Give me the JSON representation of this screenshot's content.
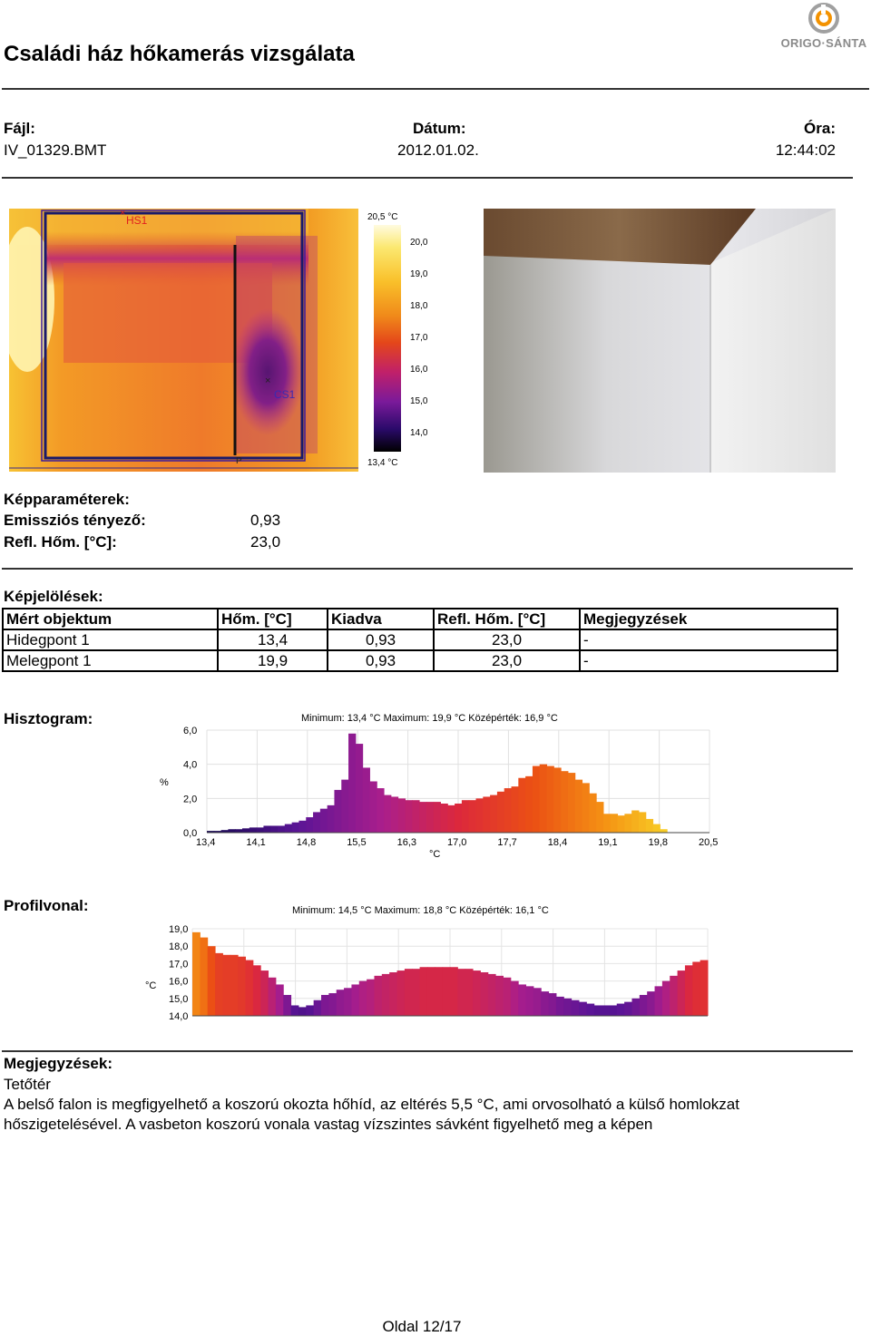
{
  "header": {
    "title": "Családi ház hőkamerás vizsgálata",
    "logo_text": "ORIGO·SÁNTA"
  },
  "fileinfo": {
    "file_label": "Fájl:",
    "file_value": "IV_01329.BMT",
    "date_label": "Dátum:",
    "date_value": "2012.01.02.",
    "time_label": "Óra:",
    "time_value": "12:44:02"
  },
  "thermal": {
    "markers": {
      "hs1": "HS1",
      "cs1": "CS1",
      "p": "P"
    },
    "scale_max": "20,5 °C",
    "scale_min": "13,4 °C",
    "scale_ticks": [
      "20,0",
      "19,0",
      "18,0",
      "17,0",
      "16,0",
      "15,0",
      "14,0"
    ]
  },
  "params": {
    "heading": "Képparaméterek:",
    "emis_label": "Emissziós tényező:",
    "emis_value": "0,93",
    "refl_label": "Refl. Hőm. [°C]:",
    "refl_value": "23,0"
  },
  "marks": {
    "heading": "Képjelölések:",
    "headers": [
      "Mért objektum",
      "Hőm. [°C]",
      "Kiadva",
      "Refl. Hőm. [°C]",
      "Megjegyzések"
    ],
    "rows": [
      [
        "Hidegpont 1",
        "13,4",
        "0,93",
        "23,0",
        "-"
      ],
      [
        "Melegpont 1",
        "19,9",
        "0,93",
        "23,0",
        "-"
      ]
    ]
  },
  "histogram": {
    "heading": "Hisztogram:",
    "stats": "Minimum:  13,4  °C Maximum:  19,9  °C Középérték:  16,9  °C",
    "ylabel": "%",
    "xlabel": "°C",
    "yticks": [
      "6,0",
      "4,0",
      "2,0",
      "0,0"
    ],
    "xticks": [
      "13,4",
      "14,1",
      "14,8",
      "15,5",
      "16,3",
      "17,0",
      "17,7",
      "18,4",
      "19,1",
      "19,8",
      "20,5"
    ]
  },
  "profile": {
    "heading": "Profilvonal:",
    "stats": "Minimum:  14,5  °C Maximum:  18,8  °C Középérték:  16,1  °C",
    "ylabel": "°C",
    "yticks": [
      "19,0",
      "18,0",
      "17,0",
      "16,0",
      "15,0",
      "14,0"
    ]
  },
  "chart_data": [
    {
      "type": "bar",
      "title": "Minimum:  13,4  °C Maximum:  19,9  °C Középérték:  16,9  °C",
      "xlabel": "°C",
      "ylabel": "%",
      "ylim": [
        0,
        6
      ],
      "xlim": [
        13.4,
        20.5
      ],
      "x": [
        13.45,
        13.55,
        13.65,
        13.75,
        13.85,
        13.95,
        14.05,
        14.15,
        14.25,
        14.35,
        14.45,
        14.55,
        14.65,
        14.75,
        14.85,
        14.95,
        15.05,
        15.15,
        15.25,
        15.35,
        15.45,
        15.55,
        15.65,
        15.75,
        15.85,
        15.95,
        16.05,
        16.15,
        16.25,
        16.35,
        16.45,
        16.55,
        16.65,
        16.75,
        16.85,
        16.95,
        17.05,
        17.15,
        17.25,
        17.35,
        17.45,
        17.55,
        17.65,
        17.75,
        17.85,
        17.95,
        18.05,
        18.15,
        18.25,
        18.35,
        18.45,
        18.55,
        18.65,
        18.75,
        18.85,
        18.95,
        19.05,
        19.15,
        19.25,
        19.35,
        19.45,
        19.55,
        19.65,
        19.75,
        19.85
      ],
      "values": [
        0.1,
        0.1,
        0.15,
        0.2,
        0.2,
        0.25,
        0.3,
        0.3,
        0.4,
        0.4,
        0.4,
        0.5,
        0.6,
        0.7,
        0.9,
        1.2,
        1.4,
        1.6,
        2.5,
        3.1,
        5.8,
        5.2,
        3.8,
        3.0,
        2.6,
        2.2,
        2.1,
        2.0,
        1.9,
        1.9,
        1.8,
        1.8,
        1.8,
        1.7,
        1.6,
        1.7,
        1.9,
        1.9,
        2.0,
        2.1,
        2.2,
        2.4,
        2.6,
        2.7,
        3.2,
        3.3,
        3.9,
        4.0,
        3.9,
        3.8,
        3.6,
        3.5,
        3.1,
        2.9,
        2.3,
        1.8,
        1.1,
        1.1,
        1.0,
        1.1,
        1.3,
        1.2,
        0.8,
        0.5,
        0.2
      ]
    },
    {
      "type": "bar",
      "title": "Minimum:  14,5  °C Maximum:  18,8  °C Középérték:  16,1  °C",
      "ylabel": "°C",
      "ylim": [
        14,
        19
      ],
      "values": [
        18.8,
        18.5,
        18.0,
        17.6,
        17.5,
        17.5,
        17.4,
        17.2,
        16.9,
        16.6,
        16.2,
        15.8,
        15.2,
        14.6,
        14.5,
        14.6,
        14.9,
        15.2,
        15.3,
        15.5,
        15.6,
        15.8,
        16.0,
        16.1,
        16.3,
        16.4,
        16.5,
        16.6,
        16.7,
        16.7,
        16.8,
        16.8,
        16.8,
        16.8,
        16.8,
        16.7,
        16.7,
        16.6,
        16.5,
        16.4,
        16.3,
        16.2,
        16.0,
        15.8,
        15.7,
        15.6,
        15.4,
        15.3,
        15.1,
        15.0,
        14.9,
        14.8,
        14.7,
        14.6,
        14.6,
        14.6,
        14.7,
        14.8,
        15.0,
        15.2,
        15.4,
        15.7,
        16.0,
        16.3,
        16.6,
        16.9,
        17.1,
        17.2
      ]
    }
  ],
  "notes": {
    "heading": "Megjegyzések:",
    "line1": "Tetőtér",
    "line2": "A belső falon is megfigyelhető a koszorú okozta hőhíd, az eltérés 5,5 °C, ami orvosolható a külső homlokzat",
    "line3": "hőszigetelésével. A vasbeton koszorú vonala vastag vízszintes sávként figyelhető meg a képen"
  },
  "footer": {
    "page": "Oldal 12/17"
  },
  "colors": {
    "accent_orange": "#f39200",
    "logo_gray": "#8a8a8a"
  }
}
